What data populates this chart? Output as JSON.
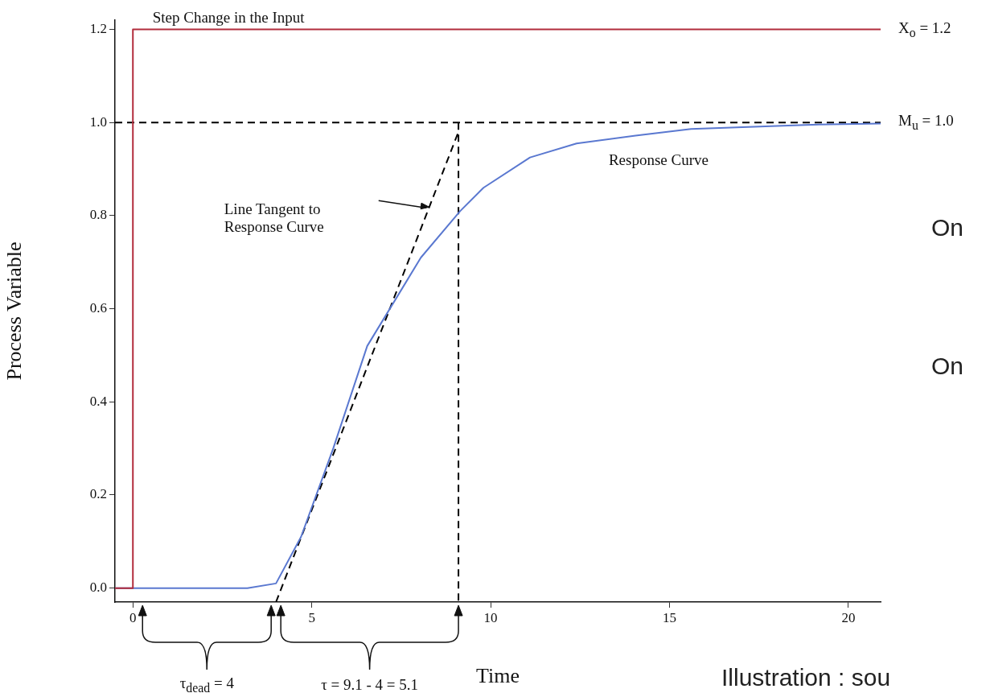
{
  "chart_data": {
    "type": "line",
    "xlabel": "Time",
    "ylabel": "Process Variable",
    "xlim": [
      -0.5,
      20.9
    ],
    "xticks": [
      0,
      5,
      10,
      15,
      20
    ],
    "ylim": [
      -0.03,
      1.22
    ],
    "yticks": [
      {
        "value": 0,
        "label": "0.0"
      },
      {
        "value": 0.2,
        "label": "0.2"
      },
      {
        "value": 0.4,
        "label": "0.4"
      },
      {
        "value": 0.6,
        "label": "0.6"
      },
      {
        "value": 0.8,
        "label": "0.8"
      },
      {
        "value": 1,
        "label": "1.0"
      },
      {
        "value": 1.2,
        "label": "1.2"
      }
    ],
    "grid": false,
    "legend": false,
    "marker": "none",
    "series": [
      {
        "name": "Step Change in the Input",
        "color": "#b22c3c",
        "x": [
          -0.5,
          0,
          0,
          20.9
        ],
        "values": [
          0,
          0,
          1.2,
          1.2
        ]
      },
      {
        "name": "Response Curve",
        "color": "#5a78d0",
        "x": [
          -0.5,
          3.2,
          4.0,
          4.7,
          5.6,
          6.55,
          8.05,
          9.15,
          9.8,
          11.1,
          12.4,
          14.05,
          15.6,
          18.8,
          20.9
        ],
        "values": [
          0,
          0,
          0.01,
          0.11,
          0.3,
          0.52,
          0.71,
          0.81,
          0.86,
          0.925,
          0.955,
          0.972,
          0.986,
          0.995,
          0.998
        ]
      },
      {
        "color": "#000000",
        "line_style": "dashed",
        "x": [
          4.0,
          9.1
        ],
        "values": [
          -0.03,
          0.98
        ]
      },
      {
        "color": "#000000",
        "line_style": "dashed",
        "x": [
          9.1,
          9.1
        ],
        "values": [
          1.0,
          -0.03
        ]
      }
    ],
    "ref_lines": [
      {
        "axis": "y",
        "value": 1.0,
        "label": "M$_{u}$ = 1.0",
        "color": "#000000",
        "line_style": "dashed"
      }
    ],
    "annotations": [
      {
        "text": "X$_{o}$ = 1.2",
        "x": 20.9,
        "y": 1.2
      },
      "Line Tangent to Response Curve",
      "τ$_{dead}$ = 4",
      "τ = 9.1 - 4 = 5.1",
      "On",
      "On",
      "Illustration : sou"
    ]
  }
}
